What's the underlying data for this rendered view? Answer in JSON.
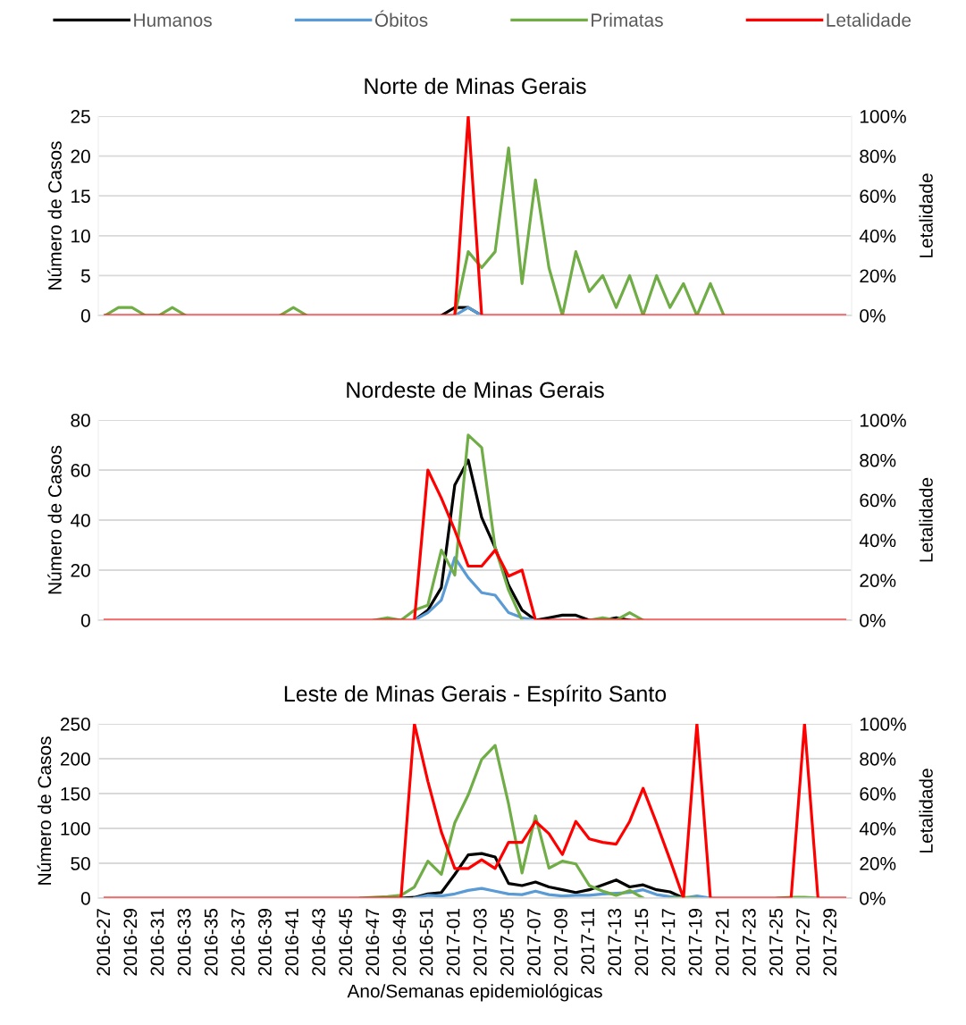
{
  "chart_data": [
    {
      "type": "line",
      "title": "Norte de Minas Gerais",
      "ylabel": "Número de Casos",
      "y2label": "Letalidade",
      "legend": "top",
      "grid": "y",
      "tick_labels": "y",
      "categories": [
        "2016-27",
        null,
        "2016-29",
        null,
        "2016-31",
        null,
        "2016-33",
        null,
        "2016-35",
        null,
        "2016-37",
        null,
        "2016-39",
        null,
        "2016-41",
        null,
        "2016-43",
        null,
        "2016-45",
        null,
        "2016-47",
        null,
        "2016-49",
        null,
        "2016-51",
        null,
        "2017-01",
        null,
        "2017-03",
        null,
        "2017-05",
        null,
        "2017-07",
        null,
        "2017-09",
        null,
        "2017-11",
        null,
        "2017-13",
        null,
        "2017-15",
        null,
        "2017-17",
        null,
        "2017-19",
        null,
        "2017-21",
        null,
        "2017-23",
        null,
        "2017-25",
        null,
        "2017-27",
        null,
        "2017-29",
        null
      ],
      "ylim": [
        0,
        25
      ],
      "yticks": [
        0,
        5,
        10,
        15,
        20,
        25
      ],
      "y2lim": [
        0,
        100
      ],
      "y2ticks": [
        {
          "value": 0,
          "label": "0%"
        },
        {
          "value": 20,
          "label": "20%"
        },
        {
          "value": 40,
          "label": "40%"
        },
        {
          "value": 60,
          "label": "60%"
        },
        {
          "value": 80,
          "label": "80%"
        },
        {
          "value": 100,
          "label": "100%"
        }
      ],
      "series": [
        {
          "name": "Humanos",
          "color": "#000000",
          "values": [
            null,
            null,
            null,
            null,
            null,
            null,
            null,
            null,
            null,
            null,
            null,
            null,
            null,
            null,
            null,
            null,
            null,
            null,
            null,
            null,
            null,
            null,
            null,
            null,
            null,
            0,
            1,
            1,
            0,
            null,
            null,
            null,
            null,
            null,
            null,
            null,
            null,
            null,
            null,
            null,
            null,
            null,
            null,
            null,
            null,
            null,
            null,
            null,
            null,
            null,
            null,
            null,
            null,
            null,
            null,
            null
          ]
        },
        {
          "name": "Óbitos",
          "color": "#5b9bd5",
          "values": [
            null,
            null,
            null,
            null,
            null,
            null,
            null,
            null,
            null,
            null,
            null,
            null,
            null,
            null,
            null,
            null,
            null,
            null,
            null,
            null,
            null,
            null,
            null,
            null,
            null,
            null,
            0,
            1,
            0,
            null,
            null,
            null,
            null,
            null,
            null,
            null,
            null,
            null,
            null,
            null,
            null,
            null,
            null,
            null,
            null,
            null,
            null,
            null,
            null,
            null,
            null,
            null,
            null,
            null,
            null,
            null
          ]
        },
        {
          "name": "Primatas",
          "color": "#70ad47",
          "values": [
            0,
            1,
            1,
            0,
            0,
            1,
            0,
            null,
            null,
            null,
            null,
            null,
            null,
            0,
            1,
            0,
            null,
            null,
            null,
            null,
            null,
            null,
            null,
            null,
            null,
            null,
            0,
            8,
            6,
            8,
            21,
            4,
            17,
            6,
            0,
            8,
            3,
            5,
            1,
            5,
            0,
            5,
            1,
            4,
            0,
            4,
            0,
            null,
            null,
            null,
            null,
            null,
            null,
            null,
            null,
            null
          ]
        },
        {
          "name": "Letalidade",
          "color": "#ff0000",
          "axis": "y2",
          "values": [
            0,
            0,
            0,
            0,
            0,
            0,
            0,
            0,
            0,
            0,
            0,
            0,
            0,
            0,
            0,
            0,
            0,
            0,
            0,
            0,
            0,
            0,
            0,
            0,
            0,
            0,
            0,
            100,
            0,
            0,
            0,
            0,
            0,
            0,
            0,
            0,
            0,
            0,
            0,
            0,
            0,
            0,
            0,
            0,
            0,
            0,
            0,
            0,
            0,
            0,
            0,
            0,
            0,
            0,
            0,
            0
          ]
        }
      ]
    },
    {
      "type": "line",
      "title": "Nordeste de Minas Gerais",
      "ylabel": "Número de Casos",
      "y2label": "Letalidade",
      "grid": "y",
      "tick_labels": "y",
      "categories": [
        "2016-27",
        null,
        "2016-29",
        null,
        "2016-31",
        null,
        "2016-33",
        null,
        "2016-35",
        null,
        "2016-37",
        null,
        "2016-39",
        null,
        "2016-41",
        null,
        "2016-43",
        null,
        "2016-45",
        null,
        "2016-47",
        null,
        "2016-49",
        null,
        "2016-51",
        null,
        "2017-01",
        null,
        "2017-03",
        null,
        "2017-05",
        null,
        "2017-07",
        null,
        "2017-09",
        null,
        "2017-11",
        null,
        "2017-13",
        null,
        "2017-15",
        null,
        "2017-17",
        null,
        "2017-19",
        null,
        "2017-21",
        null,
        "2017-23",
        null,
        "2017-25",
        null,
        "2017-27",
        null,
        "2017-29",
        null
      ],
      "ylim": [
        0,
        80
      ],
      "yticks": [
        0,
        20,
        40,
        60,
        80
      ],
      "y2lim": [
        0,
        100
      ],
      "y2ticks": [
        {
          "value": 0,
          "label": "0%"
        },
        {
          "value": 20,
          "label": "20%"
        },
        {
          "value": 40,
          "label": "40%"
        },
        {
          "value": 60,
          "label": "60%"
        },
        {
          "value": 80,
          "label": "80%"
        },
        {
          "value": 100,
          "label": "100%"
        }
      ],
      "series": [
        {
          "color": "#000000",
          "values": [
            null,
            null,
            null,
            null,
            null,
            null,
            null,
            null,
            null,
            null,
            null,
            null,
            null,
            null,
            null,
            null,
            null,
            null,
            null,
            null,
            null,
            null,
            null,
            0,
            4,
            13,
            54,
            64,
            41,
            29,
            14,
            4,
            0,
            1,
            2,
            2,
            0,
            0,
            1,
            0,
            null,
            null,
            null,
            null,
            null,
            null,
            null,
            null,
            null,
            null,
            null,
            null,
            null,
            null,
            null,
            null
          ]
        },
        {
          "color": "#5b9bd5",
          "values": [
            null,
            null,
            null,
            null,
            null,
            null,
            null,
            null,
            null,
            null,
            null,
            null,
            null,
            null,
            null,
            null,
            null,
            null,
            null,
            null,
            null,
            null,
            null,
            0,
            3,
            8,
            25,
            17,
            11,
            10,
            3,
            1,
            0,
            null,
            null,
            null,
            null,
            null,
            null,
            null,
            null,
            null,
            null,
            null,
            null,
            null,
            null,
            null,
            null,
            null,
            null,
            null,
            null,
            null,
            null,
            null
          ]
        },
        {
          "color": "#70ad47",
          "values": [
            null,
            null,
            null,
            null,
            null,
            null,
            null,
            null,
            null,
            null,
            null,
            null,
            null,
            null,
            null,
            null,
            null,
            null,
            null,
            null,
            0,
            1,
            0,
            4,
            6,
            28,
            18,
            74,
            69,
            29,
            12,
            0,
            null,
            null,
            null,
            null,
            0,
            1,
            0,
            3,
            0,
            null,
            null,
            null,
            null,
            null,
            null,
            null,
            null,
            null,
            null,
            null,
            null,
            null,
            null,
            null
          ]
        },
        {
          "color": "#ff0000",
          "axis": "y2",
          "values": [
            0,
            0,
            0,
            0,
            0,
            0,
            0,
            0,
            0,
            0,
            0,
            0,
            0,
            0,
            0,
            0,
            0,
            0,
            0,
            0,
            0,
            0,
            0,
            0,
            75,
            61,
            45,
            27,
            27,
            35,
            22,
            25,
            0,
            0,
            0,
            0,
            0,
            0,
            0,
            0,
            0,
            0,
            0,
            0,
            0,
            0,
            0,
            0,
            0,
            0,
            0,
            0,
            0,
            0,
            0,
            0
          ]
        }
      ]
    },
    {
      "type": "line",
      "title": "Leste de Minas Gerais - Espírito Santo",
      "xlabel": "Ano/Semanas epidemiológicas",
      "ylabel": "Número de Casos",
      "y2label": "Letalidade",
      "grid": "y",
      "categories": [
        "2016-27",
        null,
        "2016-29",
        null,
        "2016-31",
        null,
        "2016-33",
        null,
        "2016-35",
        null,
        "2016-37",
        null,
        "2016-39",
        null,
        "2016-41",
        null,
        "2016-43",
        null,
        "2016-45",
        null,
        "2016-47",
        null,
        "2016-49",
        null,
        "2016-51",
        null,
        "2017-01",
        null,
        "2017-03",
        null,
        "2017-05",
        null,
        "2017-07",
        null,
        "2017-09",
        null,
        "2017-11",
        null,
        "2017-13",
        null,
        "2017-15",
        null,
        "2017-17",
        null,
        "2017-19",
        null,
        "2017-21",
        null,
        "2017-23",
        null,
        "2017-25",
        null,
        "2017-27",
        null,
        "2017-29",
        null
      ],
      "ylim": [
        0,
        250
      ],
      "yticks": [
        0,
        50,
        100,
        150,
        200,
        250
      ],
      "y2lim": [
        0,
        100
      ],
      "y2ticks": [
        {
          "value": 0,
          "label": "0%"
        },
        {
          "value": 20,
          "label": "20%"
        },
        {
          "value": 40,
          "label": "40%"
        },
        {
          "value": 60,
          "label": "60%"
        },
        {
          "value": 80,
          "label": "80%"
        },
        {
          "value": 100,
          "label": "100%"
        }
      ],
      "series": [
        {
          "color": "#000000",
          "values": [
            null,
            null,
            null,
            null,
            null,
            null,
            null,
            null,
            null,
            null,
            null,
            null,
            null,
            null,
            null,
            null,
            null,
            null,
            null,
            null,
            null,
            null,
            0,
            1,
            6,
            8,
            34,
            62,
            64,
            59,
            21,
            18,
            23,
            16,
            12,
            8,
            12,
            19,
            26,
            16,
            19,
            12,
            9,
            0,
            null,
            null,
            null,
            null,
            null,
            null,
            null,
            null,
            null,
            null,
            null,
            null
          ]
        },
        {
          "color": "#5b9bd5",
          "values": [
            null,
            null,
            null,
            null,
            null,
            null,
            null,
            null,
            null,
            null,
            null,
            null,
            null,
            null,
            null,
            null,
            null,
            null,
            null,
            null,
            null,
            null,
            null,
            0,
            4,
            3,
            6,
            11,
            14,
            10,
            6,
            5,
            10,
            5,
            3,
            4,
            4,
            6,
            7,
            8,
            12,
            5,
            2,
            0,
            3,
            0,
            null,
            null,
            null,
            null,
            null,
            null,
            null,
            null,
            null,
            null
          ]
        },
        {
          "color": "#70ad47",
          "values": [
            null,
            null,
            null,
            null,
            null,
            null,
            null,
            null,
            null,
            null,
            null,
            null,
            null,
            null,
            null,
            null,
            null,
            null,
            null,
            0,
            1,
            2,
            4,
            16,
            53,
            34,
            108,
            148,
            199,
            219,
            135,
            36,
            118,
            43,
            53,
            49,
            18,
            10,
            4,
            11,
            0,
            null,
            0,
            1,
            0,
            null,
            null,
            null,
            null,
            null,
            0,
            1,
            1,
            0,
            null,
            null
          ]
        },
        {
          "color": "#ff0000",
          "axis": "y2",
          "values": [
            0,
            0,
            0,
            0,
            0,
            0,
            0,
            0,
            0,
            0,
            0,
            0,
            0,
            0,
            0,
            0,
            0,
            0,
            0,
            0,
            0,
            0,
            0,
            100,
            67,
            38,
            17,
            17,
            22,
            17,
            32,
            32,
            44,
            37,
            25,
            44,
            34,
            32,
            31,
            44,
            63,
            43,
            22,
            0,
            100,
            0,
            0,
            0,
            0,
            0,
            0,
            0,
            100,
            0,
            0,
            0
          ]
        }
      ]
    }
  ]
}
